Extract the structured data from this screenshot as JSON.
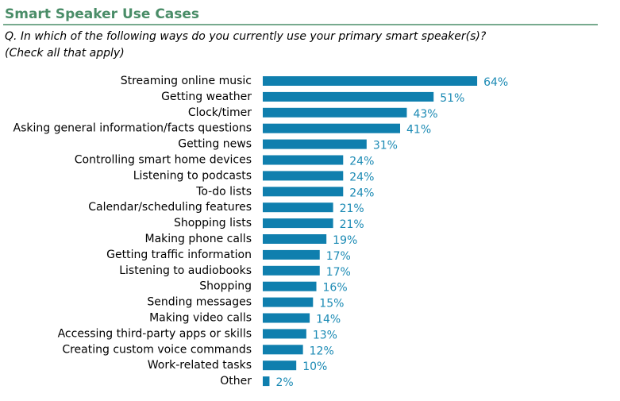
{
  "chart_data": {
    "type": "bar",
    "orientation": "horizontal",
    "title": "Smart Speaker Use Cases",
    "subtitle": [
      "Q. In which of the following ways do you currently use your primary smart speaker(s)?",
      "(Check all that apply)"
    ],
    "categories": [
      "Streaming online music",
      "Getting weather",
      "Clock/timer",
      "Asking general information/facts questions",
      "Getting news",
      "Controlling smart home devices",
      "Listening to podcasts",
      "To-do lists",
      "Calendar/scheduling features",
      "Shopping lists",
      "Making phone calls",
      "Getting traffic information",
      "Listening to audiobooks",
      "Shopping",
      "Sending messages",
      "Making video calls",
      "Accessing third-party apps or skills",
      "Creating custom voice commands",
      "Work-related tasks",
      "Other"
    ],
    "values": [
      64,
      51,
      43,
      41,
      31,
      24,
      24,
      24,
      21,
      21,
      19,
      17,
      17,
      16,
      15,
      14,
      13,
      12,
      10,
      2
    ],
    "value_labels": [
      "64%",
      "51%",
      "43%",
      "41%",
      "31%",
      "24%",
      "24%",
      "24%",
      "21%",
      "21%",
      "19%",
      "17%",
      "17%",
      "16%",
      "15%",
      "14%",
      "13%",
      "12%",
      "10%",
      "2%"
    ],
    "color": "#0f7fae"
  }
}
